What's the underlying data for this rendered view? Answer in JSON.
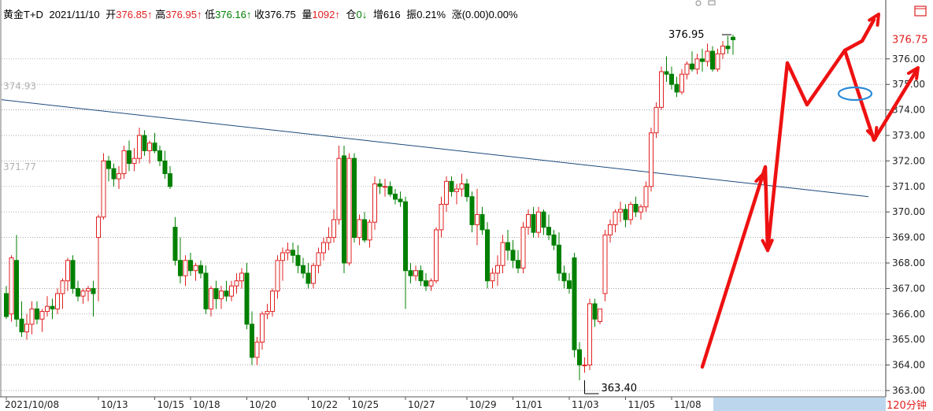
{
  "header": {
    "symbol": "黄金T+D",
    "date": "2021/11/10",
    "open_label": "开",
    "open_value": "376.85↑",
    "high_label": "高",
    "high_value": "376.95↑",
    "low_label": "低",
    "low_value": "376.16↑",
    "close_label": "收",
    "close_value": "376.75",
    "volume_label": "量",
    "volume_value": "1092↑",
    "oi_label": "仓",
    "oi_value": "0↓",
    "inc_label": "增",
    "inc_value": "616",
    "amp_label": "振",
    "amp_value": "0.21%",
    "chg_label": "涨",
    "chg_value": "(0.00)0.00%"
  },
  "period": "120分钟",
  "colors": {
    "up": "#e02020",
    "down": "#008000",
    "trendline": "#1a4a7a",
    "annotation_arrow": "#ee1111",
    "annotation_circle": "#2a8ad8",
    "grid": "#8a8a8a",
    "price_label": "#e02020",
    "period_bg": "#bcd6ee",
    "period_text": "#e02020"
  },
  "chart_data": {
    "type": "candlestick",
    "y_range": [
      362.8,
      377.9
    ],
    "y_ticks": [
      "363.00",
      "364.00",
      "365.00",
      "366.00",
      "367.00",
      "368.00",
      "369.00",
      "370.00",
      "371.00",
      "372.00",
      "373.00",
      "374.00",
      "375.00",
      "376.00"
    ],
    "last_price": "376.75",
    "x_labels": [
      "2021/10/08",
      "10/13",
      "10/15",
      "10/18",
      "10/20",
      "10/22",
      "10/25",
      "10/27",
      "10/29",
      "11/01",
      "11/03",
      "11/05",
      "11/08"
    ],
    "x_label_index": [
      0,
      18,
      29,
      36,
      47,
      59,
      67,
      78,
      90,
      99,
      110,
      121,
      130
    ],
    "candles": [
      [
        366.8,
        367.1,
        365.8,
        365.9
      ],
      [
        366.0,
        368.3,
        365.7,
        368.2
      ],
      [
        368.1,
        369.1,
        365.5,
        365.8
      ],
      [
        365.8,
        366.5,
        365.1,
        365.3
      ],
      [
        365.3,
        366.0,
        365.0,
        365.6
      ],
      [
        365.6,
        366.5,
        365.2,
        366.2
      ],
      [
        366.2,
        366.5,
        365.6,
        365.8
      ],
      [
        365.8,
        366.2,
        365.3,
        366.1
      ],
      [
        366.1,
        366.7,
        365.9,
        366.3
      ],
      [
        366.3,
        366.6,
        365.8,
        366.2
      ],
      [
        366.2,
        367.0,
        366.0,
        366.8
      ],
      [
        366.8,
        367.4,
        366.2,
        367.3
      ],
      [
        367.3,
        368.2,
        366.9,
        368.1
      ],
      [
        368.1,
        368.3,
        366.8,
        367.0
      ],
      [
        367.0,
        367.3,
        366.5,
        366.7
      ],
      [
        366.7,
        367.0,
        366.4,
        366.9
      ],
      [
        366.9,
        367.1,
        366.5,
        367.0
      ],
      [
        367.0,
        367.3,
        365.9,
        366.8
      ],
      [
        369.0,
        369.9,
        366.5,
        369.8
      ],
      [
        369.8,
        372.3,
        369.7,
        372.0
      ],
      [
        372.0,
        372.2,
        371.2,
        371.7
      ],
      [
        371.7,
        371.9,
        371.0,
        371.3
      ],
      [
        371.3,
        371.8,
        370.9,
        371.5
      ],
      [
        371.5,
        372.6,
        371.3,
        372.4
      ],
      [
        372.4,
        372.8,
        371.6,
        371.9
      ],
      [
        371.9,
        372.5,
        371.6,
        372.1
      ],
      [
        372.1,
        373.3,
        371.9,
        373.0
      ],
      [
        373.0,
        373.2,
        372.2,
        372.4
      ],
      [
        372.4,
        372.8,
        371.9,
        372.7
      ],
      [
        372.7,
        373.1,
        372.3,
        372.4
      ],
      [
        372.4,
        372.6,
        371.8,
        372.0
      ],
      [
        372.0,
        372.4,
        371.3,
        371.5
      ],
      [
        371.5,
        371.8,
        370.9,
        371.0
      ],
      [
        369.4,
        369.8,
        367.9,
        368.1
      ],
      [
        368.1,
        369.0,
        367.2,
        367.5
      ],
      [
        367.5,
        368.3,
        367.1,
        368.1
      ],
      [
        368.1,
        368.4,
        367.5,
        367.7
      ],
      [
        367.7,
        368.0,
        367.3,
        367.9
      ],
      [
        367.9,
        368.1,
        367.4,
        367.6
      ],
      [
        367.6,
        367.9,
        366.0,
        366.2
      ],
      [
        366.2,
        367.1,
        365.9,
        367.0
      ],
      [
        367.0,
        367.3,
        366.2,
        366.6
      ],
      [
        366.6,
        367.1,
        366.2,
        366.9
      ],
      [
        366.9,
        367.3,
        366.5,
        366.7
      ],
      [
        366.7,
        367.3,
        366.5,
        367.1
      ],
      [
        367.1,
        367.6,
        366.8,
        367.3
      ],
      [
        367.3,
        367.8,
        367.0,
        367.6
      ],
      [
        367.6,
        368.0,
        365.4,
        365.6
      ],
      [
        365.6,
        366.1,
        364.0,
        364.3
      ],
      [
        364.3,
        365.1,
        364.0,
        364.9
      ],
      [
        364.9,
        366.1,
        364.6,
        366.0
      ],
      [
        366.0,
        366.4,
        365.8,
        366.1
      ],
      [
        366.1,
        367.0,
        365.9,
        366.9
      ],
      [
        366.9,
        368.3,
        366.6,
        368.1
      ],
      [
        368.1,
        368.6,
        367.3,
        368.4
      ],
      [
        368.4,
        368.8,
        368.1,
        368.5
      ],
      [
        368.5,
        368.8,
        368.0,
        368.3
      ],
      [
        368.3,
        368.7,
        367.6,
        367.9
      ],
      [
        367.9,
        368.2,
        367.4,
        367.6
      ],
      [
        367.6,
        368.0,
        367.0,
        367.2
      ],
      [
        367.2,
        368.0,
        367.0,
        367.9
      ],
      [
        367.9,
        368.6,
        367.6,
        368.4
      ],
      [
        368.4,
        369.0,
        368.1,
        368.8
      ],
      [
        368.8,
        369.4,
        368.5,
        369.0
      ],
      [
        369.0,
        370.1,
        368.8,
        369.7
      ],
      [
        369.7,
        372.6,
        369.5,
        372.1
      ],
      [
        372.2,
        372.6,
        367.6,
        368.0
      ],
      [
        368.0,
        372.3,
        367.9,
        372.1
      ],
      [
        372.1,
        372.3,
        368.8,
        369.0
      ],
      [
        369.0,
        369.9,
        368.7,
        369.7
      ],
      [
        369.7,
        370.0,
        368.8,
        368.9
      ],
      [
        368.9,
        369.7,
        368.6,
        369.6
      ],
      [
        369.6,
        371.4,
        369.3,
        371.1
      ],
      [
        371.1,
        371.3,
        370.7,
        371.0
      ],
      [
        371.0,
        371.3,
        370.6,
        371.0
      ],
      [
        371.0,
        371.2,
        370.6,
        370.7
      ],
      [
        370.7,
        370.9,
        370.3,
        370.5
      ],
      [
        370.5,
        370.8,
        370.2,
        370.4
      ],
      [
        370.4,
        370.6,
        366.2,
        367.7
      ],
      [
        367.7,
        368.0,
        367.2,
        367.5
      ],
      [
        367.5,
        367.9,
        367.3,
        367.7
      ],
      [
        367.7,
        367.9,
        367.1,
        367.3
      ],
      [
        367.3,
        367.6,
        366.9,
        367.1
      ],
      [
        367.1,
        367.4,
        366.9,
        367.3
      ],
      [
        367.3,
        369.4,
        367.2,
        369.3
      ],
      [
        369.3,
        370.6,
        369.0,
        370.3
      ],
      [
        370.3,
        371.4,
        370.0,
        371.2
      ],
      [
        371.2,
        371.4,
        370.6,
        370.8
      ],
      [
        370.8,
        371.1,
        370.3,
        370.9
      ],
      [
        370.9,
        371.5,
        370.6,
        371.1
      ],
      [
        371.1,
        371.3,
        370.4,
        370.6
      ],
      [
        370.6,
        370.8,
        369.2,
        369.5
      ],
      [
        369.5,
        370.9,
        368.7,
        369.9
      ],
      [
        369.9,
        370.2,
        369.1,
        369.3
      ],
      [
        369.3,
        369.6,
        367.0,
        367.3
      ],
      [
        367.3,
        367.8,
        367.0,
        367.6
      ],
      [
        367.6,
        368.3,
        367.1,
        367.9
      ],
      [
        367.9,
        369.1,
        367.6,
        368.8
      ],
      [
        368.8,
        369.3,
        368.1,
        368.5
      ],
      [
        368.5,
        368.9,
        367.8,
        368.1
      ],
      [
        368.1,
        368.5,
        367.6,
        367.8
      ],
      [
        367.8,
        369.6,
        367.6,
        369.4
      ],
      [
        369.4,
        370.1,
        369.1,
        369.9
      ],
      [
        369.9,
        370.2,
        369.0,
        369.2
      ],
      [
        369.2,
        370.2,
        369.0,
        370.0
      ],
      [
        370.0,
        370.1,
        369.1,
        369.4
      ],
      [
        369.4,
        369.9,
        368.9,
        369.1
      ],
      [
        369.1,
        369.3,
        368.5,
        368.7
      ],
      [
        368.7,
        369.2,
        367.3,
        367.6
      ],
      [
        367.6,
        367.9,
        367.0,
        367.3
      ],
      [
        367.3,
        367.6,
        366.8,
        367.0
      ],
      [
        368.2,
        368.4,
        364.3,
        364.6
      ],
      [
        364.6,
        364.9,
        363.4,
        364.0
      ],
      [
        364.0,
        364.3,
        363.7,
        364.0
      ],
      [
        364.0,
        366.6,
        363.8,
        366.4
      ],
      [
        366.4,
        366.6,
        365.5,
        365.8
      ],
      [
        365.7,
        366.2,
        365.6,
        366.2
      ],
      [
        366.8,
        369.3,
        366.5,
        369.1
      ],
      [
        369.1,
        369.7,
        368.8,
        369.5
      ],
      [
        369.5,
        370.1,
        369.2,
        370.0
      ],
      [
        370.0,
        370.4,
        369.6,
        370.1
      ],
      [
        370.1,
        370.3,
        369.4,
        369.7
      ],
      [
        369.7,
        370.4,
        369.5,
        370.3
      ],
      [
        370.3,
        370.6,
        369.8,
        370.0
      ],
      [
        370.0,
        370.3,
        369.7,
        370.2
      ],
      [
        370.2,
        371.2,
        370.0,
        371.0
      ],
      [
        371.0,
        373.3,
        370.8,
        373.1
      ],
      [
        373.1,
        374.3,
        372.9,
        374.1
      ],
      [
        374.1,
        375.7,
        374.0,
        375.5
      ],
      [
        375.5,
        376.1,
        375.1,
        375.4
      ],
      [
        375.4,
        375.7,
        374.8,
        375.0
      ],
      [
        375.0,
        375.3,
        374.5,
        374.7
      ],
      [
        374.7,
        375.6,
        374.6,
        375.4
      ],
      [
        375.4,
        375.9,
        375.2,
        375.8
      ],
      [
        375.8,
        376.3,
        375.5,
        375.6
      ],
      [
        375.6,
        376.2,
        375.4,
        376.0
      ],
      [
        376.0,
        376.4,
        375.5,
        375.9
      ],
      [
        375.9,
        376.6,
        375.7,
        376.3
      ],
      [
        376.3,
        376.5,
        375.5,
        375.6
      ],
      [
        375.6,
        376.4,
        375.5,
        376.2
      ],
      [
        376.2,
        376.7,
        376.0,
        376.5
      ],
      [
        376.5,
        376.9,
        376.2,
        376.4
      ],
      [
        376.85,
        376.95,
        376.16,
        376.75
      ]
    ],
    "trendline": {
      "from": [
        0,
        374.4
      ],
      "to": [
        160,
        370.6
      ]
    },
    "reference_labels": [
      "374.93",
      "371.77"
    ],
    "max_label": "376.95",
    "min_label": "363.40"
  }
}
